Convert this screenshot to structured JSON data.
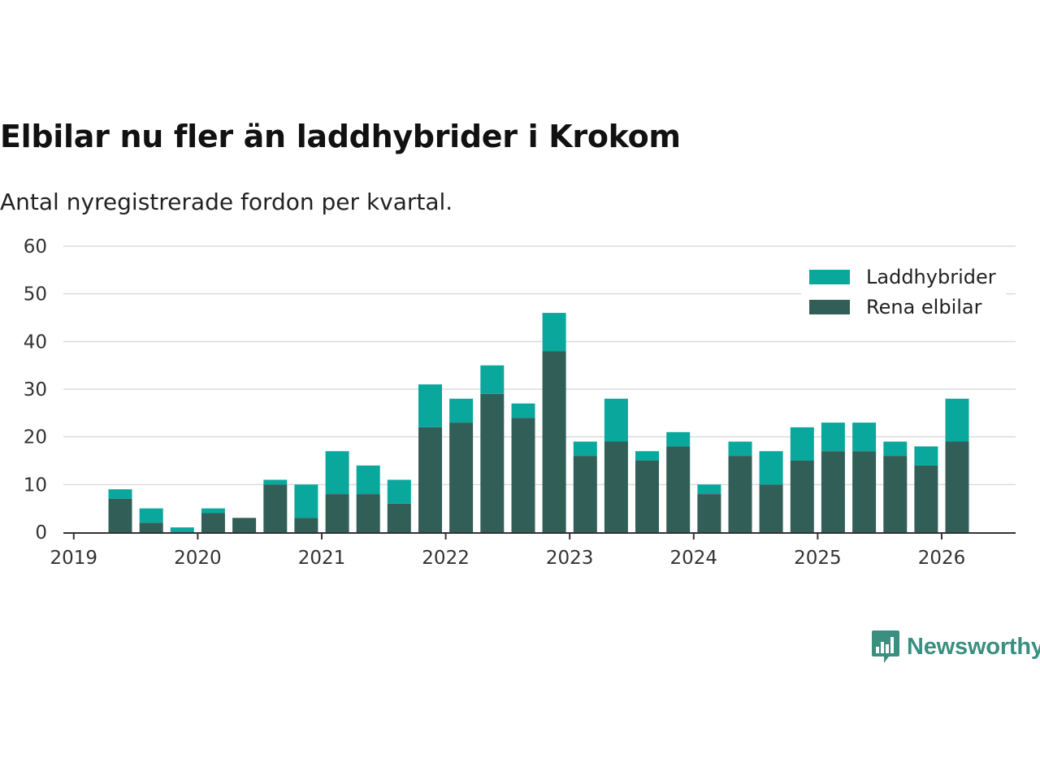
{
  "header": {
    "title": "Elbilar nu fler än laddhybrider i Krokom",
    "subtitle": "Antal nyregistrerade fordon per kvartal."
  },
  "brand": {
    "name": "Newsworthy",
    "icon": "newsworthy-bar-chart-icon",
    "color": "#3a8f80"
  },
  "colors": {
    "laddhybrider": "#0aa79c",
    "rena_elbilar": "#325e58",
    "grid": "#dcdcdc",
    "axis": "#333333"
  },
  "chart_data": {
    "type": "bar",
    "stacked": true,
    "title": "Elbilar nu fler än laddhybrider i Krokom",
    "subtitle": "Antal nyregistrerade fordon per kvartal.",
    "xlabel": "",
    "ylabel": "",
    "ylim": [
      0,
      60
    ],
    "yticks": [
      0,
      10,
      20,
      30,
      40,
      50,
      60
    ],
    "xticks": [
      "2019",
      "2020",
      "2021",
      "2022",
      "2023",
      "2024",
      "2025",
      "2026"
    ],
    "grid": true,
    "legend_position": "top-right",
    "categories": [
      "2019 Q1",
      "2019 Q2",
      "2019 Q3",
      "2019 Q4",
      "2020 Q1",
      "2020 Q2",
      "2020 Q3",
      "2020 Q4",
      "2021 Q1",
      "2021 Q2",
      "2021 Q3",
      "2021 Q4",
      "2022 Q1",
      "2022 Q2",
      "2022 Q3",
      "2022 Q4",
      "2023 Q1",
      "2023 Q2",
      "2023 Q3",
      "2023 Q4",
      "2024 Q1",
      "2024 Q2",
      "2024 Q3",
      "2024 Q4",
      "2025 Q1",
      "2025 Q2",
      "2025 Q3",
      "2025 Q4"
    ],
    "series": [
      {
        "name": "Rena elbilar",
        "color": "#325e58",
        "values": [
          7,
          2,
          0,
          4,
          3,
          10,
          3,
          8,
          8,
          6,
          22,
          23,
          29,
          24,
          38,
          16,
          19,
          15,
          18,
          8,
          16,
          10,
          15,
          17,
          17,
          16,
          14,
          19
        ]
      },
      {
        "name": "Laddhybrider",
        "color": "#0aa79c",
        "values": [
          2,
          3,
          1,
          1,
          0,
          1,
          7,
          9,
          6,
          5,
          9,
          5,
          6,
          3,
          8,
          3,
          9,
          2,
          3,
          2,
          3,
          7,
          7,
          6,
          6,
          3,
          4,
          9
        ]
      }
    ],
    "legend": [
      "Laddhybrider",
      "Rena elbilar"
    ]
  }
}
